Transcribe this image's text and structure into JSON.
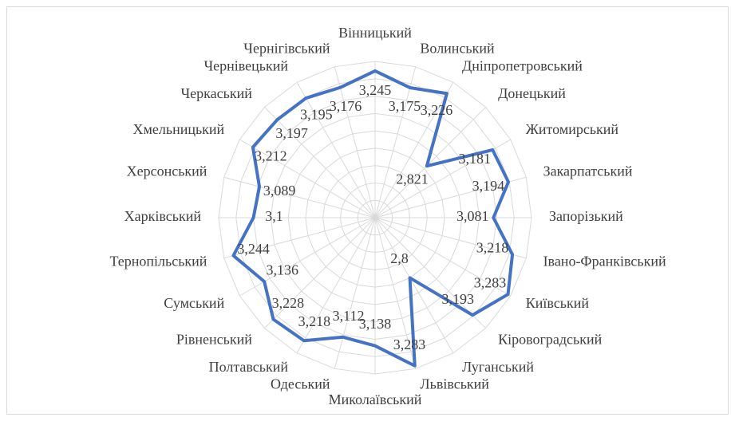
{
  "chart_data": {
    "type": "radar",
    "categories": [
      "Вінницький",
      "Волинський",
      "Дніпропетровський",
      "Донецький",
      "Житомирський",
      "Закарпатський",
      "Запорізький",
      "Івано-Франківський",
      "Київський",
      "Кіровоградський",
      "Луганський",
      "Львівський",
      "Миколаївський",
      "Одеський",
      "Полтавський",
      "Рівненський",
      "Сумський",
      "Тернопільський",
      "Харківський",
      "Херсонський",
      "Хмельницький",
      "Черкаський",
      "Чернівецький",
      "Чернігівський"
    ],
    "values": [
      3.245,
      3.175,
      3.226,
      2.821,
      3.181,
      3.194,
      3.081,
      3.218,
      3.283,
      3.193,
      2.8,
      3.283,
      3.138,
      3.112,
      3.218,
      3.228,
      3.136,
      3.244,
      3.1,
      3.089,
      3.212,
      3.197,
      3.195,
      3.176
    ],
    "value_labels": [
      "3,245",
      "3,175",
      "3,226",
      "2,821",
      "3,181",
      "3,194",
      "3,081",
      "3,218",
      "3,283",
      "3,193",
      "2,8",
      "3,283",
      "3,138",
      "3,112",
      "3,218",
      "3,228",
      "3,136",
      "3,244",
      "3,1",
      "3,089",
      "3,212",
      "3,197",
      "3,195",
      "3,176"
    ],
    "color": "#4472c4",
    "ylim": [
      2.4,
      3.3
    ],
    "yticks": [
      2.4,
      2.5,
      2.6,
      2.7,
      2.8,
      2.9,
      3.0,
      3.1,
      3.2,
      3.3
    ],
    "grid": true
  }
}
